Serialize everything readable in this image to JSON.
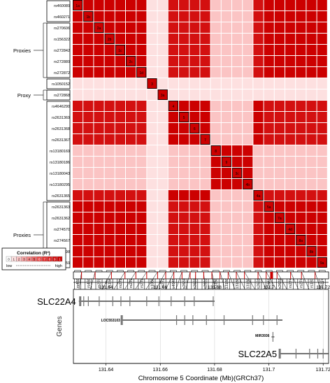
{
  "snps": [
    {
      "id": "rs460089",
      "group": "g1"
    },
    {
      "id": "rs460271",
      "group": "g1"
    },
    {
      "id": "rs270606",
      "group": "g2"
    },
    {
      "id": "rs156322",
      "group": "g2"
    },
    {
      "id": "rs272842",
      "group": "g2"
    },
    {
      "id": "rs272889",
      "group": "g2"
    },
    {
      "id": "rs272872",
      "group": "g2"
    },
    {
      "id": "rs1050152",
      "group": "g3"
    },
    {
      "id": "rs272868",
      "group": "g4"
    },
    {
      "id": "rs4646290",
      "group": "g5"
    },
    {
      "id": "rs2631369",
      "group": "g5"
    },
    {
      "id": "rs2631368",
      "group": "g5"
    },
    {
      "id": "rs2631367",
      "group": "g5"
    },
    {
      "id": "rs13180169",
      "group": "g5"
    },
    {
      "id": "rs13180186",
      "group": "g5"
    },
    {
      "id": "rs13180043",
      "group": "g5"
    },
    {
      "id": "rs13180295",
      "group": "g5"
    },
    {
      "id": "rs2631365",
      "group": "g5"
    },
    {
      "id": "rs2631363",
      "group": "g6"
    },
    {
      "id": "rs2631362",
      "group": "g6"
    },
    {
      "id": "rs274570",
      "group": "g6"
    },
    {
      "id": "rs274567",
      "group": "g6"
    },
    {
      "id": "rs183898",
      "group": "g6"
    },
    {
      "id": "rs274559",
      "group": "g6"
    }
  ],
  "row_groups": [
    {
      "label": "",
      "from": 0,
      "to": 1
    },
    {
      "label": "Proxies",
      "from": 2,
      "to": 6
    },
    {
      "label": "",
      "from": 7,
      "to": 7
    },
    {
      "label": "Proxy",
      "from": 8,
      "to": 8
    },
    {
      "label": "",
      "from": 9,
      "to": 17
    },
    {
      "label": "Proxies",
      "from": 18,
      "to": 23
    }
  ],
  "diag_labels": [
    "1a",
    "1b",
    "2a",
    "2b",
    "1c",
    "2c",
    "1d",
    "3",
    "3a",
    "4",
    "5",
    "6",
    "7",
    "8",
    "9",
    "3c",
    "4b",
    "4a",
    "5a",
    "7a",
    "4d",
    "8a",
    "8b",
    "9a"
  ],
  "legend": {
    "title": "Correlation (R²)",
    "levels": [
      "0",
      "1",
      "2",
      "3",
      "4",
      "5",
      "6",
      "7",
      "8",
      "9",
      "1"
    ],
    "low": "low",
    "high": "high",
    "colors": [
      "#ffffff",
      "#fde0e0",
      "#fbc4c4",
      "#f8a4a4",
      "#f58787",
      "#f06a6a",
      "#eb4f4f",
      "#e33434",
      "#dc1f1f",
      "#d31010",
      "#cc0000"
    ]
  },
  "chromosome_axis": {
    "label": "Chromosome 5 Coordinate (Mb)(GRCh37)",
    "range": [
      131.628,
      131.722
    ],
    "ticks": [
      "131.64",
      "131.66",
      "131.68",
      "131.7",
      "131.72"
    ],
    "tick_values": [
      131.64,
      131.66,
      131.68,
      131.7,
      131.72
    ]
  },
  "snp_positions_mb": [
    131.631,
    131.636,
    131.642,
    131.647,
    131.651,
    131.655,
    131.659,
    131.662,
    131.665,
    131.668,
    131.671,
    131.673,
    131.676,
    131.679,
    131.682,
    131.685,
    131.688,
    131.691,
    131.696,
    131.699,
    131.703,
    131.708,
    131.712,
    131.717
  ],
  "genes_axis_label": "Genes",
  "genes": [
    {
      "name": "SLC22A4",
      "label_style": "large",
      "start": 131.63,
      "end": 131.68
    },
    {
      "name": "LOC553103",
      "label_style": "small",
      "start": 131.646,
      "end": 131.705
    },
    {
      "name": "MIR3936",
      "label_style": "small",
      "start": 131.701,
      "end": 131.702
    },
    {
      "name": "SLC22A5",
      "label_style": "large",
      "start": 131.704,
      "end": 131.723
    }
  ],
  "colors": {
    "high": "#cc0000",
    "cell_border": "#ffffff",
    "gene_line": "#555555"
  }
}
